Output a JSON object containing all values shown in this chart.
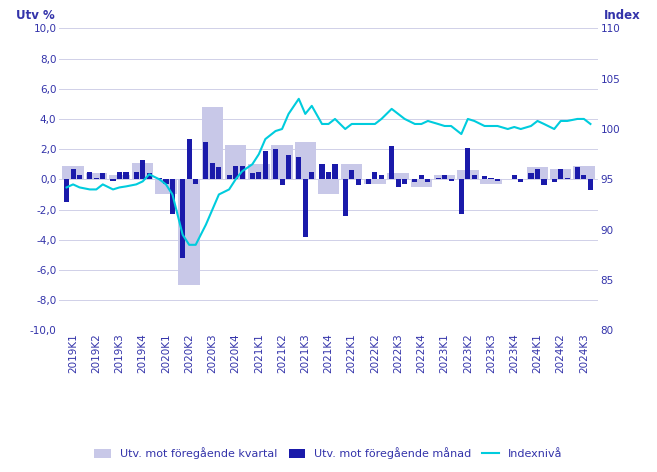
{
  "x_labels": [
    "2019K1",
    "2019K2",
    "2019K3",
    "2019K4",
    "2020K1",
    "2020K2",
    "2020K3",
    "2020K4",
    "2021K1",
    "2021K2",
    "2021K3",
    "2021K4",
    "2022K1",
    "2022K2",
    "2022K3",
    "2022K4",
    "2023K1",
    "2023K2",
    "2023K3",
    "2023K4",
    "2024K1",
    "2024K2",
    "2024K3"
  ],
  "monthly_values": [
    -1.5,
    0.7,
    0.3,
    0.5,
    0.1,
    0.4,
    -0.1,
    0.5,
    0.5,
    0.5,
    1.3,
    0.4,
    0.1,
    -0.3,
    -2.3,
    -5.2,
    2.7,
    -0.3,
    2.5,
    1.1,
    0.8,
    0.3,
    0.9,
    0.9,
    0.4,
    0.5,
    1.9,
    2.0,
    -0.4,
    1.6,
    1.5,
    -3.8,
    0.5,
    1.0,
    0.5,
    1.0,
    -2.4,
    0.6,
    -0.4,
    -0.3,
    0.5,
    0.3,
    2.2,
    -0.5,
    -0.3,
    -0.2,
    0.3,
    -0.2,
    0.1,
    0.3,
    -0.1,
    -2.3,
    2.1,
    0.3,
    0.2,
    0.1,
    -0.1,
    0.0,
    0.3,
    -0.2,
    0.4,
    0.7,
    -0.4,
    -0.2,
    0.7,
    0.1,
    0.8,
    0.3,
    -0.7
  ],
  "quarterly_values": [
    0.9,
    0.4,
    0.3,
    1.1,
    -1.0,
    -7.0,
    4.8,
    2.3,
    1.0,
    2.3,
    2.5,
    -1.0,
    1.0,
    -0.3,
    0.4,
    -0.5,
    0.3,
    0.6,
    -0.3,
    0.0,
    0.8,
    0.7,
    0.9
  ],
  "index_values": [
    94.2,
    94.5,
    94.2,
    94.0,
    94.0,
    94.5,
    94.0,
    94.2,
    94.3,
    94.5,
    94.8,
    95.5,
    95.0,
    94.5,
    93.5,
    89.5,
    88.5,
    88.5,
    90.5,
    92.0,
    93.5,
    94.0,
    95.0,
    95.8,
    96.5,
    97.5,
    99.0,
    99.8,
    100.0,
    101.5,
    103.0,
    101.5,
    102.3,
    100.5,
    100.5,
    101.0,
    100.0,
    100.5,
    100.5,
    100.5,
    100.5,
    101.0,
    102.0,
    101.5,
    101.0,
    100.5,
    100.5,
    100.8,
    100.5,
    100.3,
    100.3,
    99.5,
    101.0,
    100.8,
    100.3,
    100.3,
    100.3,
    100.0,
    100.2,
    100.0,
    100.3,
    100.8,
    100.5,
    100.0,
    100.8,
    100.8,
    101.0,
    101.0,
    100.5
  ],
  "bar_color_monthly": "#1a1aaa",
  "bar_color_quarterly": "#c8c8e8",
  "line_color_index": "#00ccdd",
  "ylim_left": [
    -10.0,
    10.0
  ],
  "ylim_right": [
    80,
    110
  ],
  "yticks_left": [
    -10.0,
    -8.0,
    -6.0,
    -4.0,
    -2.0,
    0.0,
    2.0,
    4.0,
    6.0,
    8.0,
    10.0
  ],
  "yticks_left_labels": [
    "-10,0",
    "-8,0",
    "-6,0",
    "-4,0",
    "-2,0",
    "0,0",
    "2,0",
    "4,0",
    "6,0",
    "8,0",
    "10,0"
  ],
  "yticks_right": [
    80,
    85,
    90,
    95,
    100,
    105,
    110
  ],
  "legend_labels": [
    "Utv. mot föregående kvartal",
    "Utv. mot föregående månad",
    "Indexnivå"
  ],
  "left_axis_label": "Utv %",
  "right_axis_label": "Index",
  "grid_color": "#d0d0e8",
  "background_color": "#ffffff",
  "axis_color": "#3333aa",
  "tick_color": "#3333aa",
  "tick_fontsize": 7.5,
  "legend_fontsize": 8.0
}
